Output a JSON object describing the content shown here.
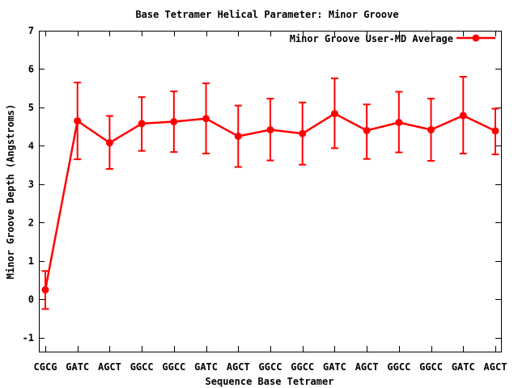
{
  "chart_data": {
    "type": "line",
    "title": "Base Tetramer Helical Parameter: Minor Groove",
    "xlabel": "Sequence Base Tetramer",
    "ylabel": "Minor Groove Depth (Angstroms)",
    "legend": {
      "label": "Minor Groove User-MD Average",
      "position": "top-right",
      "marker": "filled-circle-on-line"
    },
    "series_color": "#ff0000",
    "frame_color": "#000000",
    "background_color": "#ffffff",
    "grid": false,
    "error_bars": true,
    "marker": "filled-circle",
    "categories": [
      "CGCG",
      "GATC",
      "AGCT",
      "GGCC",
      "GGCC",
      "GATC",
      "AGCT",
      "GGCC",
      "GGCC",
      "GATC",
      "AGCT",
      "GGCC",
      "GGCC",
      "GATC",
      "AGCT"
    ],
    "series": [
      {
        "name": "Minor Groove User-MD Average",
        "values": [
          0.25,
          4.65,
          4.08,
          4.58,
          4.63,
          4.71,
          4.25,
          4.42,
          4.32,
          4.84,
          4.4,
          4.61,
          4.42,
          4.79,
          4.39
        ],
        "error_low": [
          -0.25,
          3.65,
          3.4,
          3.87,
          3.84,
          3.8,
          3.45,
          3.62,
          3.51,
          3.94,
          3.66,
          3.83,
          3.61,
          3.8,
          3.78
        ],
        "error_high": [
          0.74,
          5.65,
          4.78,
          5.27,
          5.42,
          5.63,
          5.05,
          5.23,
          5.13,
          5.76,
          5.08,
          5.41,
          5.23,
          5.8,
          4.97
        ]
      }
    ],
    "yticks": [
      -1,
      0,
      1,
      2,
      3,
      4,
      5,
      6,
      7
    ],
    "ylim": [
      -1.36,
      7.0
    ]
  }
}
